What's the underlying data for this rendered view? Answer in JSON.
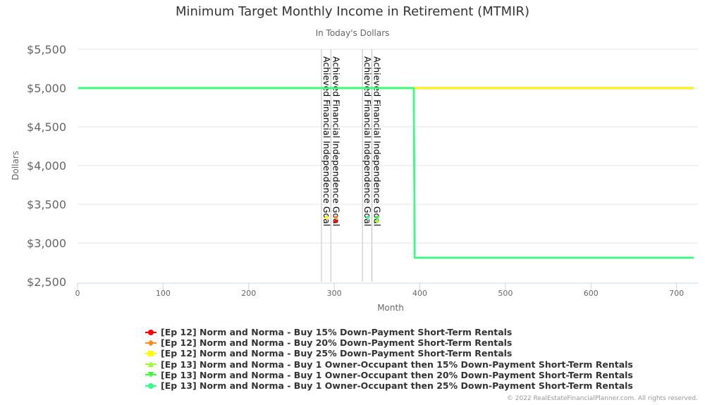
{
  "chart_data": {
    "type": "line",
    "title": "Minimum Target Monthly Income in Retirement (MTMIR)",
    "subtitle": "In Today's Dollars",
    "xlabel": "Month",
    "ylabel": "Dollars",
    "xlim": [
      0,
      725
    ],
    "ylim": [
      2500,
      5500
    ],
    "xticks": [
      0,
      100,
      200,
      300,
      400,
      500,
      600,
      700
    ],
    "xtick_labels": [
      "0",
      "100",
      "200",
      "300",
      "400",
      "500",
      "600",
      "700"
    ],
    "yticks": [
      2500,
      3000,
      3500,
      4000,
      4500,
      5000,
      5500
    ],
    "ytick_labels": [
      "$2,500",
      "$3,000",
      "$3,500",
      "$4,000",
      "$4,500",
      "$5,000",
      "$5,500"
    ],
    "grid": true,
    "legend_position": "bottom",
    "series": [
      {
        "name": "[Ep 12] Norm and Norma - Buy 15% Down-Payment Short-Term Rentals",
        "color": "#ff0000",
        "marker": "circle",
        "x": [
          1,
          720
        ],
        "y": [
          5000,
          5000
        ]
      },
      {
        "name": "[Ep 12] Norm and Norma - Buy 20% Down-Payment Short-Term Rentals",
        "color": "#ff8c1a",
        "marker": "diamond",
        "x": [
          1,
          720
        ],
        "y": [
          5000,
          5000
        ]
      },
      {
        "name": "[Ep 12] Norm and Norma - Buy 25% Down-Payment Short-Term Rentals",
        "color": "#ffff00",
        "marker": "square",
        "x": [
          1,
          720
        ],
        "y": [
          5000,
          5000
        ]
      },
      {
        "name": "[Ep 13] Norm and Norma - Buy 1 Owner-Occupant then 15% Down-Payment Short-Term Rentals",
        "color": "#99ff33",
        "marker": "triangle",
        "x": [
          1,
          393,
          394,
          720
        ],
        "y": [
          5000,
          5000,
          2810,
          2810
        ]
      },
      {
        "name": "[Ep 13] Norm and Norma - Buy 1 Owner-Occupant then 20% Down-Payment Short-Term Rentals",
        "color": "#33ff33",
        "marker": "triangle-down",
        "x": [
          1,
          393,
          394,
          720
        ],
        "y": [
          5000,
          5000,
          2810,
          2810
        ]
      },
      {
        "name": "[Ep 13] Norm and Norma - Buy 1 Owner-Occupant then 25% Down-Payment Short-Term Rentals",
        "color": "#33ff88",
        "marker": "circle",
        "x": [
          1,
          393,
          394,
          720
        ],
        "y": [
          5000,
          5000,
          2810,
          2810
        ]
      }
    ],
    "plot_lines": [
      {
        "x": 285,
        "label": "Achieved Financial Independence Goal"
      },
      {
        "x": 296,
        "label": "Achieved Financial Independence Goal"
      },
      {
        "x": 333,
        "label": "Achieved Financial Independence Goal"
      },
      {
        "x": 344,
        "label": "Achieved Financial Independence Goal"
      }
    ],
    "goal_markers": [
      {
        "x": 291,
        "y": 3330,
        "color": "#ffff00"
      },
      {
        "x": 302,
        "y": 3330,
        "color": "#ff8c1a"
      },
      {
        "x": 302,
        "y": 3280,
        "color": "#ff0000"
      },
      {
        "x": 339,
        "y": 3330,
        "color": "#33ff88"
      },
      {
        "x": 350,
        "y": 3330,
        "color": "#33ff33"
      },
      {
        "x": 350,
        "y": 3280,
        "color": "#99ff33"
      }
    ]
  },
  "credit": "© 2022 RealEstateFinancialPlanner.com. All rights reserved."
}
